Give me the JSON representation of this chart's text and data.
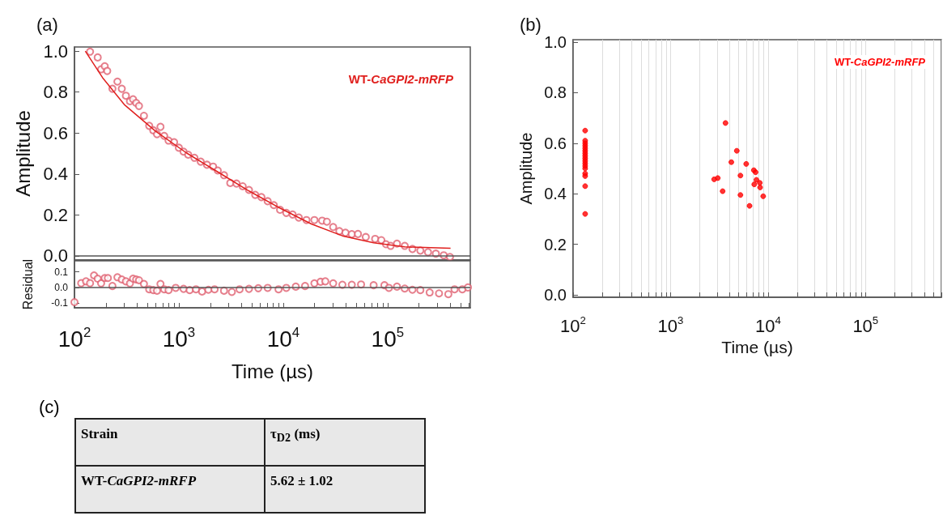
{
  "chart_data": [
    {
      "type": "scatter",
      "title": "(a)",
      "ylabel": "Amplitude",
      "annotations": [
        "WT-CaGPI2-mRFP"
      ],
      "log": "x",
      "xlim": [
        100,
        620000
      ],
      "ylim": [
        -0.02,
        1.02
      ],
      "yticks": [
        {
          "value": 0,
          "label": "0.0"
        },
        {
          "value": 0.2,
          "label": "0.2"
        },
        {
          "value": 0.4,
          "label": "0.4"
        },
        {
          "value": 0.6,
          "label": "0.6"
        },
        {
          "value": 0.8,
          "label": "0.8"
        },
        {
          "value": 1,
          "label": "1.0"
        }
      ],
      "tick_labels": "y",
      "grid": false,
      "ref_lines": [
        {
          "axis": "y",
          "value": 0,
          "color": "#555555"
        }
      ],
      "series": [
        {
          "type": "scatter",
          "marker": "circle",
          "color": "#e06070",
          "x": [
            141,
            167,
            180,
            195,
            206,
            231,
            258,
            284,
            311,
            340,
            364,
            390,
            415,
            463,
            520,
            569,
            618,
            667,
            724,
            797,
            901,
            1000,
            1110,
            1230,
            1410,
            1620,
            1860,
            2130,
            2360,
            2710,
            3110,
            3570,
            4090,
            4700,
            5390,
            6180,
            7100,
            8130,
            9330,
            10700,
            12300,
            14100,
            16700,
            19900,
            23600,
            26200,
            30100,
            34500,
            39500,
            45400,
            52000,
            61800,
            76000,
            87100,
            96600,
            107000,
            123000,
            146000,
            173000,
            206000,
            244000,
            290000,
            345000,
            396000
          ],
          "values": [
            0.997,
            0.969,
            0.911,
            0.926,
            0.903,
            0.816,
            0.851,
            0.816,
            0.782,
            0.755,
            0.765,
            0.747,
            0.732,
            0.684,
            0.635,
            0.613,
            0.594,
            0.63,
            0.586,
            0.563,
            0.555,
            0.528,
            0.509,
            0.494,
            0.479,
            0.46,
            0.445,
            0.436,
            0.417,
            0.394,
            0.356,
            0.353,
            0.34,
            0.322,
            0.298,
            0.287,
            0.267,
            0.248,
            0.225,
            0.21,
            0.202,
            0.187,
            0.175,
            0.175,
            0.172,
            0.167,
            0.141,
            0.121,
            0.113,
            0.106,
            0.107,
            0.092,
            0.083,
            0.077,
            0.057,
            0.049,
            0.06,
            0.049,
            0.034,
            0.026,
            0.018,
            0.011,
            0.003,
            -0.005
          ]
        },
        {
          "type": "line",
          "marker": "none",
          "color": "#e0201e",
          "x": [
            127,
            186,
            300,
            597,
            1190,
            2360,
            4700,
            9330,
            18600,
            36900,
            73500,
            146000,
            401000
          ],
          "values": [
            1.0,
            0.87,
            0.739,
            0.609,
            0.502,
            0.41,
            0.317,
            0.233,
            0.156,
            0.098,
            0.064,
            0.044,
            0.037
          ]
        }
      ]
    },
    {
      "type": "scatter",
      "ylabel": "Residual",
      "xlabel": "Time (µs)",
      "log": "x",
      "xlim": [
        100,
        620000
      ],
      "ylim": [
        -0.13,
        0.17
      ],
      "xticks": [
        {
          "value": 100,
          "label": "10$^{2}$"
        },
        {
          "value": 200,
          "label": null
        },
        {
          "value": 300,
          "label": null
        },
        {
          "value": 400,
          "label": null
        },
        {
          "value": 500,
          "label": null
        },
        {
          "value": 600,
          "label": null
        },
        {
          "value": 700,
          "label": null
        },
        {
          "value": 800,
          "label": null
        },
        {
          "value": 900,
          "label": null
        },
        {
          "value": 1000,
          "label": "10$^{3}$"
        },
        {
          "value": 2000,
          "label": null
        },
        {
          "value": 3000,
          "label": null
        },
        {
          "value": 4000,
          "label": null
        },
        {
          "value": 5000,
          "label": null
        },
        {
          "value": 6000,
          "label": null
        },
        {
          "value": 7000,
          "label": null
        },
        {
          "value": 8000,
          "label": null
        },
        {
          "value": 9000,
          "label": null
        },
        {
          "value": 10000,
          "label": "10$^{4}$"
        },
        {
          "value": 20000,
          "label": null
        },
        {
          "value": 30000,
          "label": null
        },
        {
          "value": 40000,
          "label": null
        },
        {
          "value": 50000,
          "label": null
        },
        {
          "value": 60000,
          "label": null
        },
        {
          "value": 70000,
          "label": null
        },
        {
          "value": 80000,
          "label": null
        },
        {
          "value": 90000,
          "label": null
        },
        {
          "value": 100000,
          "label": "10$^{5}$"
        },
        {
          "value": 200000,
          "label": null
        },
        {
          "value": 300000,
          "label": null
        },
        {
          "value": 400000,
          "label": null
        },
        {
          "value": 500000,
          "label": null
        },
        {
          "value": 600000,
          "label": null
        }
      ],
      "yticks": [
        {
          "value": -0.1,
          "label": "-0.1"
        },
        {
          "value": 0,
          "label": "0.0"
        },
        {
          "value": 0.1,
          "label": "0.1"
        }
      ],
      "marker": "circle",
      "grid": false,
      "ref_lines": [
        {
          "axis": "y",
          "value": 0,
          "color": "#555555"
        }
      ],
      "series": [
        {
          "type": "scatter",
          "color": "#e06070",
          "x": [
            100,
            116,
            129,
            141,
            154,
            167,
            180,
            195,
            209,
            231,
            258,
            284,
            311,
            340,
            364,
            390,
            415,
            463,
            520,
            569,
            618,
            667,
            724,
            797,
            933,
            1110,
            1270,
            1460,
            1670,
            1920,
            2200,
            2710,
            3220,
            3820,
            4700,
            5770,
            7100,
            9020,
            10700,
            13200,
            16200,
            19900,
            22800,
            25300,
            30100,
            36900,
            45400,
            55700,
            73500,
            93300,
            103000,
            123000,
            146000,
            173000,
            206000,
            253000,
            311000,
            382000,
            438000,
            520000,
            589000
          ],
          "values": [
            -0.094,
            0.027,
            0.039,
            0.027,
            0.077,
            0.056,
            0.026,
            0.06,
            0.06,
            0.009,
            0.065,
            0.051,
            0.039,
            0.026,
            0.056,
            0.051,
            0.046,
            0.022,
            -0.012,
            -0.017,
            -0.021,
            0.022,
            -0.012,
            -0.017,
            -0.003,
            -0.009,
            -0.017,
            -0.012,
            -0.026,
            -0.015,
            -0.012,
            -0.021,
            -0.029,
            -0.012,
            -0.009,
            -0.005,
            -0.003,
            -0.012,
            -0.003,
            0.005,
            0.009,
            0.026,
            0.036,
            0.039,
            0.026,
            0.017,
            0.017,
            0.019,
            0.014,
            0.014,
            -0.003,
            0.005,
            -0.007,
            -0.015,
            -0.017,
            -0.032,
            -0.038,
            -0.043,
            -0.012,
            -0.012,
            0.0
          ]
        }
      ]
    },
    {
      "type": "scatter",
      "title": "(b)",
      "ylabel": "Amplitude",
      "xlabel": "Time (µs)",
      "annotations": [
        "WT-CaGPI2-mRFP"
      ],
      "log": "x",
      "xlim": [
        100,
        600000
      ],
      "ylim": [
        -0.01,
        1.01
      ],
      "xticks": [
        {
          "value": 100,
          "label": "10$^{2}$"
        },
        {
          "value": 200,
          "label": null
        },
        {
          "value": 300,
          "label": null
        },
        {
          "value": 400,
          "label": null
        },
        {
          "value": 500,
          "label": null
        },
        {
          "value": 600,
          "label": null
        },
        {
          "value": 700,
          "label": null
        },
        {
          "value": 800,
          "label": null
        },
        {
          "value": 900,
          "label": null
        },
        {
          "value": 1000,
          "label": "10$^{3}$"
        },
        {
          "value": 2000,
          "label": null
        },
        {
          "value": 3000,
          "label": null
        },
        {
          "value": 4000,
          "label": null
        },
        {
          "value": 5000,
          "label": null
        },
        {
          "value": 6000,
          "label": null
        },
        {
          "value": 7000,
          "label": null
        },
        {
          "value": 8000,
          "label": null
        },
        {
          "value": 9000,
          "label": null
        },
        {
          "value": 10000,
          "label": "10$^{4}$"
        },
        {
          "value": 20000,
          "label": null
        },
        {
          "value": 30000,
          "label": null
        },
        {
          "value": 40000,
          "label": null
        },
        {
          "value": 50000,
          "label": null
        },
        {
          "value": 60000,
          "label": null
        },
        {
          "value": 70000,
          "label": null
        },
        {
          "value": 80000,
          "label": null
        },
        {
          "value": 90000,
          "label": null
        },
        {
          "value": 100000,
          "label": "10$^{5}$"
        },
        {
          "value": 200000,
          "label": null
        },
        {
          "value": 300000,
          "label": null
        },
        {
          "value": 400000,
          "label": null
        },
        {
          "value": 500000,
          "label": null
        },
        {
          "value": 600000,
          "label": null
        }
      ],
      "yticks": [
        {
          "value": 0,
          "label": "0.0"
        },
        {
          "value": 0.2,
          "label": "0.2"
        },
        {
          "value": 0.4,
          "label": "0.4"
        },
        {
          "value": 0.6,
          "label": "0.6"
        },
        {
          "value": 0.8,
          "label": "0.8"
        },
        {
          "value": 1,
          "label": "1.0"
        }
      ],
      "marker": "circle",
      "grid": "x",
      "series": [
        {
          "type": "scatter",
          "color": "#ff0000",
          "x": [
            133,
            133,
            133,
            133,
            133,
            133,
            133,
            133,
            133,
            133,
            133,
            133,
            133,
            133,
            133,
            133,
            133,
            2800,
            3050,
            3420,
            3660,
            4200,
            4780,
            5210,
            5210,
            5970,
            6460,
            7150,
            7220,
            7450,
            7600,
            8230,
            8290,
            8920
          ],
          "values": [
            0.65,
            0.61,
            0.6,
            0.59,
            0.58,
            0.57,
            0.56,
            0.55,
            0.54,
            0.53,
            0.52,
            0.51,
            0.5,
            0.48,
            0.47,
            0.43,
            0.32,
            0.457,
            0.462,
            0.41,
            0.68,
            0.525,
            0.57,
            0.472,
            0.395,
            0.518,
            0.352,
            0.493,
            0.437,
            0.485,
            0.455,
            0.443,
            0.425,
            0.39
          ]
        }
      ]
    },
    {
      "type": "other",
      "title": "(c)",
      "annotations": [
        "Strain",
        "τ$_{D2}$ (ms)",
        "WT-CaGPI2-mRFP",
        "5.62 ± 1.02"
      ]
    }
  ]
}
